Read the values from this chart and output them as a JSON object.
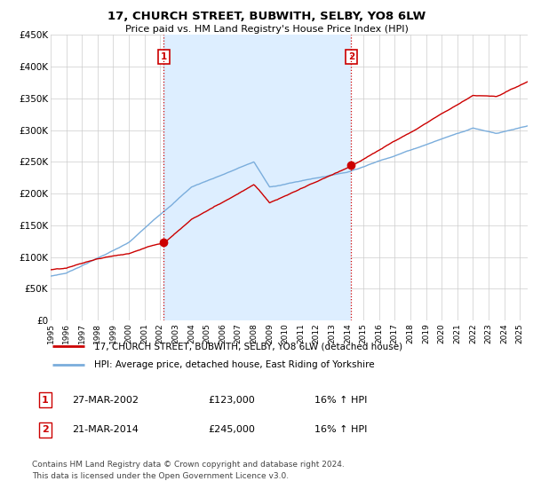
{
  "title": "17, CHURCH STREET, BUBWITH, SELBY, YO8 6LW",
  "subtitle": "Price paid vs. HM Land Registry's House Price Index (HPI)",
  "legend_line1": "17, CHURCH STREET, BUBWITH, SELBY, YO8 6LW (detached house)",
  "legend_line2": "HPI: Average price, detached house, East Riding of Yorkshire",
  "footnote1": "Contains HM Land Registry data © Crown copyright and database right 2024.",
  "footnote2": "This data is licensed under the Open Government Licence v3.0.",
  "table": [
    {
      "num": "1",
      "date": "27-MAR-2002",
      "price": "£123,000",
      "hpi": "16% ↑ HPI"
    },
    {
      "num": "2",
      "date": "21-MAR-2014",
      "price": "£245,000",
      "hpi": "16% ↑ HPI"
    }
  ],
  "sale1_year": 2002.23,
  "sale1_price": 123000,
  "sale2_year": 2014.22,
  "sale2_price": 245000,
  "red_color": "#cc0000",
  "blue_color": "#7aaddc",
  "fill_color": "#ddeeff",
  "vline_color": "#cc0000",
  "ylim": [
    0,
    450000
  ],
  "xlim_start": 1995,
  "xlim_end": 2025.5
}
